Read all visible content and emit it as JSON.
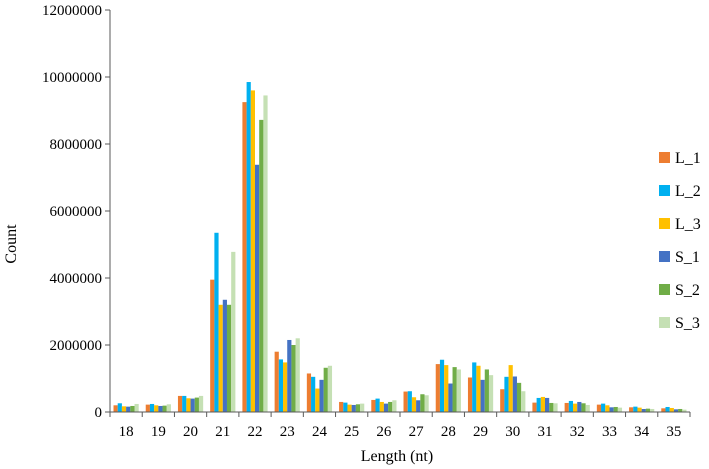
{
  "chart_data": {
    "type": "bar",
    "xlabel": "Length (nt)",
    "ylabel": "Count",
    "ylim": [
      0,
      12000000
    ],
    "yticks": [
      0,
      2000000,
      4000000,
      6000000,
      8000000,
      10000000,
      12000000
    ],
    "ytick_labels": [
      "0",
      "2000000",
      "4000000",
      "6000000",
      "8000000",
      "10000000",
      "12000000"
    ],
    "categories": [
      "18",
      "19",
      "20",
      "21",
      "22",
      "23",
      "24",
      "25",
      "26",
      "27",
      "28",
      "29",
      "30",
      "31",
      "32",
      "33",
      "34",
      "35"
    ],
    "grid": false,
    "legend_position": "right",
    "series": [
      {
        "name": "L_1",
        "color": "#ED7D31",
        "values": [
          200000,
          220000,
          480000,
          3950000,
          9250000,
          1800000,
          1150000,
          300000,
          360000,
          610000,
          1430000,
          1030000,
          680000,
          280000,
          270000,
          220000,
          140000,
          110000
        ]
      },
      {
        "name": "L_2",
        "color": "#00B0F0",
        "values": [
          260000,
          240000,
          480000,
          5350000,
          9850000,
          1570000,
          1050000,
          280000,
          400000,
          620000,
          1560000,
          1480000,
          1050000,
          420000,
          330000,
          250000,
          160000,
          150000
        ]
      },
      {
        "name": "L_3",
        "color": "#FFC000",
        "values": [
          170000,
          200000,
          410000,
          3200000,
          9600000,
          1480000,
          700000,
          220000,
          300000,
          440000,
          1400000,
          1380000,
          1400000,
          450000,
          250000,
          200000,
          130000,
          120000
        ]
      },
      {
        "name": "S_1",
        "color": "#4472C4",
        "values": [
          160000,
          180000,
          400000,
          3350000,
          7380000,
          2150000,
          960000,
          210000,
          250000,
          350000,
          850000,
          960000,
          1060000,
          420000,
          300000,
          140000,
          90000,
          80000
        ]
      },
      {
        "name": "S_2",
        "color": "#70AD47",
        "values": [
          180000,
          190000,
          430000,
          3200000,
          8720000,
          2000000,
          1320000,
          230000,
          300000,
          530000,
          1340000,
          1270000,
          870000,
          270000,
          260000,
          150000,
          100000,
          90000
        ]
      },
      {
        "name": "S_3",
        "color": "#C5E0B4",
        "values": [
          240000,
          230000,
          480000,
          4780000,
          9450000,
          2200000,
          1380000,
          250000,
          350000,
          500000,
          1270000,
          1100000,
          620000,
          260000,
          210000,
          130000,
          90000,
          70000
        ]
      }
    ]
  }
}
